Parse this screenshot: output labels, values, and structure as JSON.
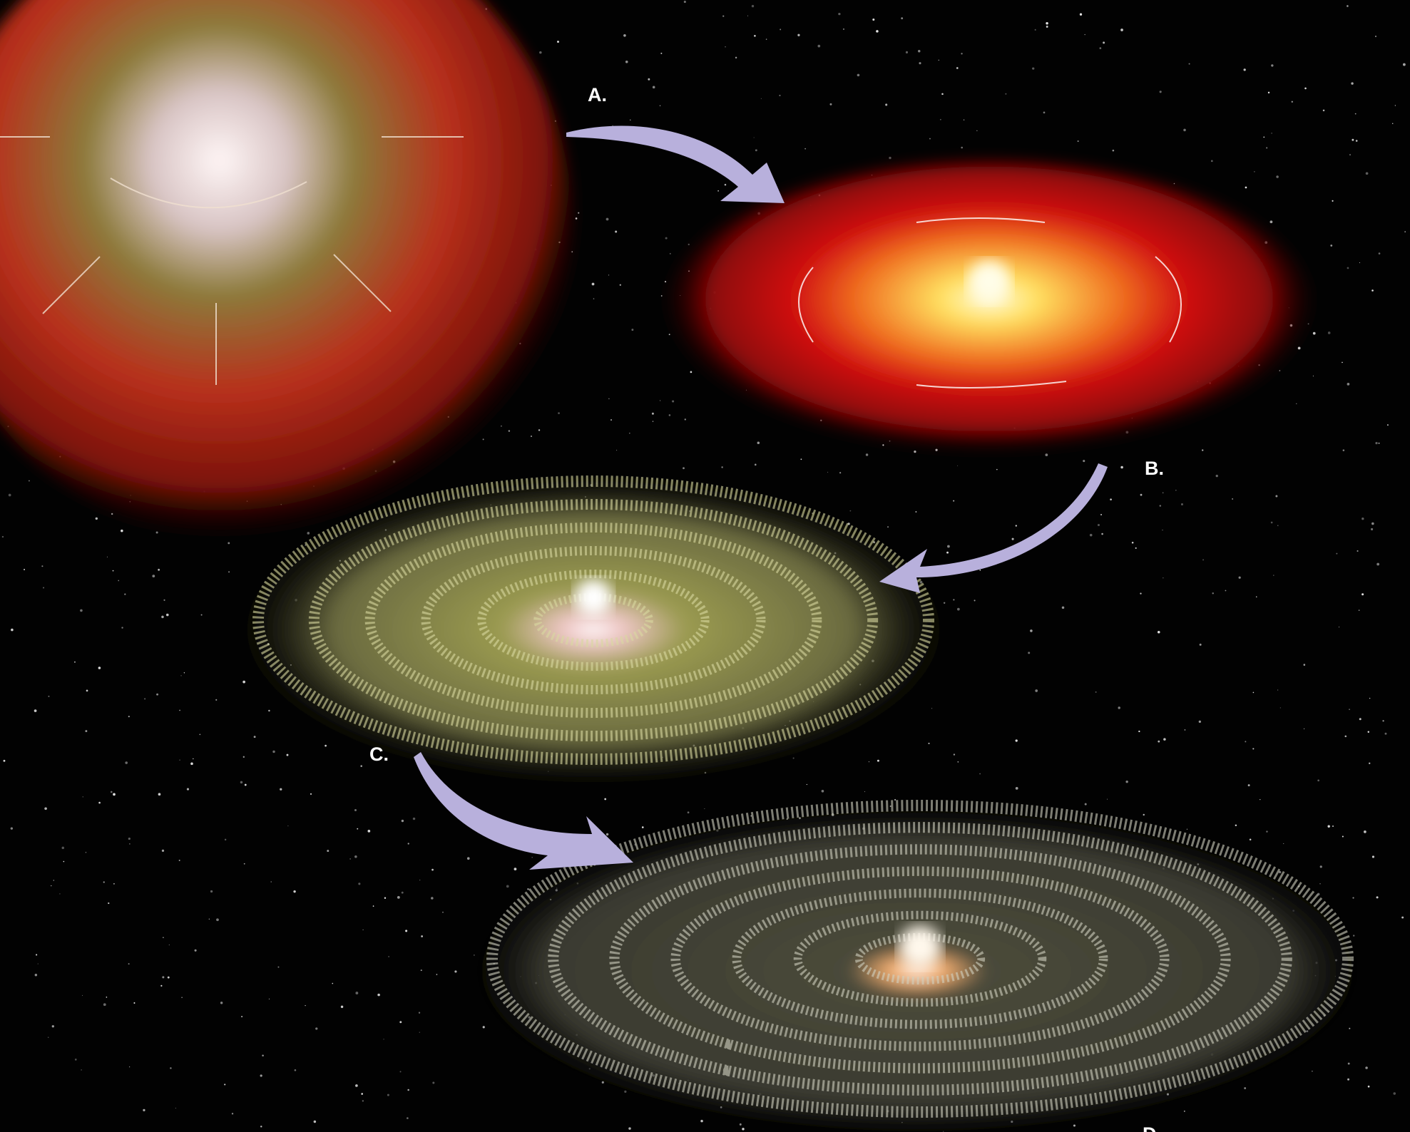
{
  "labels": {
    "a": "A.",
    "b": "B.",
    "c": "C.",
    "d": "D."
  }
}
